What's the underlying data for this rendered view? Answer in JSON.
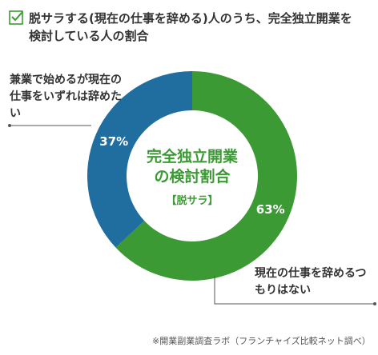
{
  "chart_data": {
    "type": "donut",
    "title": "脱サラする(現在の仕事を辞める)人のうち、完全独立開業を検討している人の割合",
    "center_title": "完全独立開業の検討割合",
    "center_subtitle": "【脱サラ】",
    "categories": [
      "現在の仕事を辞めるつもりはない",
      "兼業で始めるが現在の仕事をいずれは辞めたい"
    ],
    "values": [
      63,
      37
    ],
    "value_labels": [
      "63%",
      "37%"
    ],
    "colors": [
      "#3c9a35",
      "#1f6e9f"
    ],
    "source": "※開業副業調査ラボ（フランチャイズ比較ネット調べ）"
  }
}
